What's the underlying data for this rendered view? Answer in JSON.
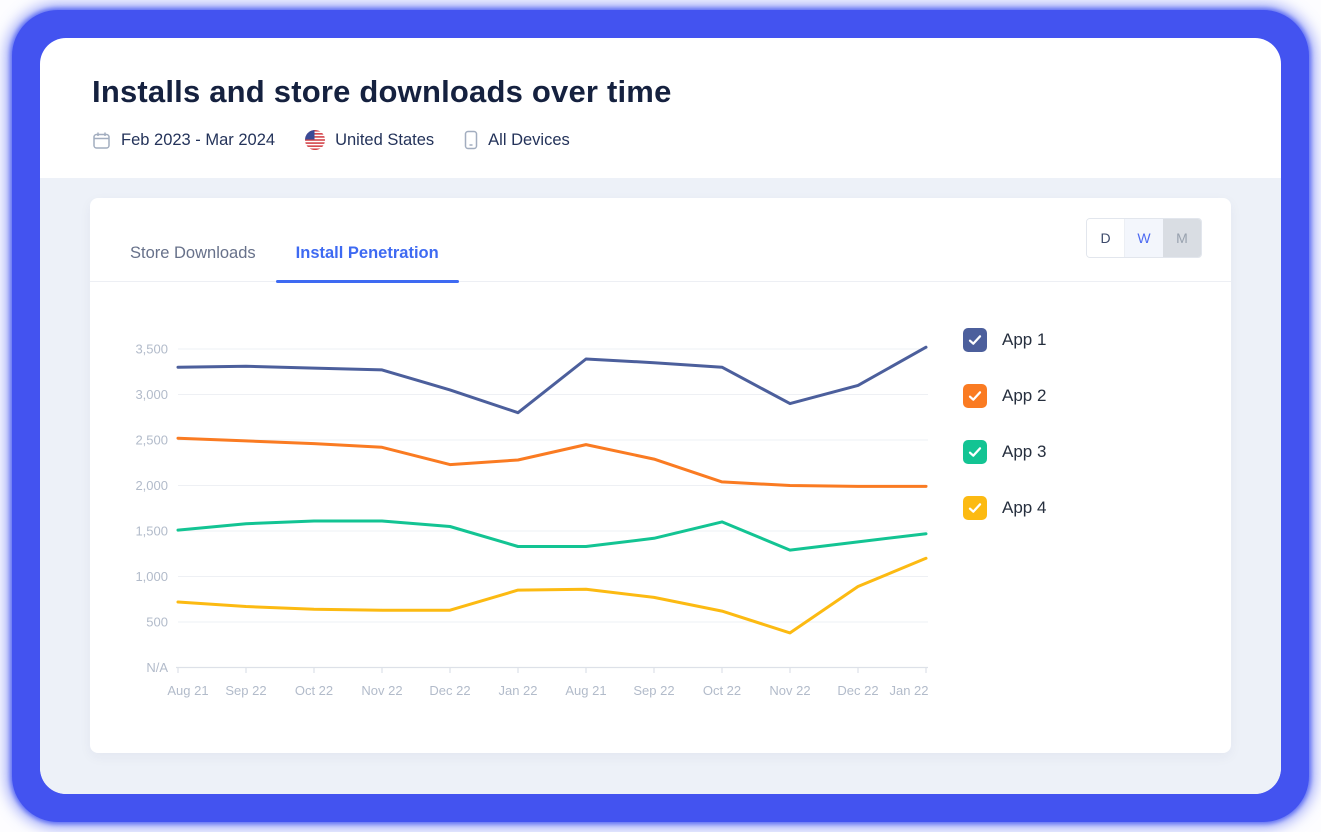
{
  "page": {
    "title": "Installs and store downloads over time",
    "filters": {
      "date_range": "Feb 2023 - Mar 2024",
      "country": "United States",
      "devices": "All Devices"
    }
  },
  "card": {
    "tabs": [
      {
        "label": "Store Downloads",
        "active": false
      },
      {
        "label": "Install Penetration",
        "active": true
      }
    ],
    "granularity_toggle": {
      "options": [
        "D",
        "W",
        "M"
      ],
      "selected": "W"
    },
    "legend": [
      {
        "label": "App 1",
        "color": "#4c5f9c",
        "checked": true
      },
      {
        "label": "App 2",
        "color": "#fa7b22",
        "checked": true
      },
      {
        "label": "App 3",
        "color": "#13c493",
        "checked": true
      },
      {
        "label": "App 4",
        "color": "#fcba12",
        "checked": true
      }
    ]
  },
  "chart_data": {
    "type": "line",
    "categories": [
      "Aug 21",
      "Sep 22",
      "Oct 22",
      "Nov 22",
      "Dec 22",
      "Jan 22",
      "Aug 21",
      "Sep 22",
      "Oct 22",
      "Nov 22",
      "Dec 22",
      "Jan 22"
    ],
    "series": [
      {
        "name": "App 1",
        "color": "#4c5f9c",
        "values": [
          3300,
          3310,
          3290,
          3270,
          3050,
          2800,
          3390,
          3350,
          3300,
          2900,
          3100,
          3520
        ]
      },
      {
        "name": "App 2",
        "color": "#fa7b22",
        "values": [
          2520,
          2490,
          2460,
          2420,
          2230,
          2280,
          2450,
          2290,
          2040,
          2000,
          1990,
          1990
        ]
      },
      {
        "name": "App 3",
        "color": "#13c493",
        "values": [
          1510,
          1580,
          1610,
          1610,
          1550,
          1330,
          1330,
          1420,
          1600,
          1290,
          1380,
          1470
        ]
      },
      {
        "name": "App 4",
        "color": "#fcba12",
        "values": [
          720,
          670,
          640,
          630,
          630,
          850,
          860,
          770,
          620,
          380,
          890,
          1200
        ]
      }
    ],
    "yticks": [
      {
        "v": 0,
        "label": "N/A"
      },
      {
        "v": 500,
        "label": "500"
      },
      {
        "v": 1000,
        "label": "1,000"
      },
      {
        "v": 1500,
        "label": "1,500"
      },
      {
        "v": 2000,
        "label": "2,000"
      },
      {
        "v": 2500,
        "label": "2,500"
      },
      {
        "v": 3000,
        "label": "3,000"
      },
      {
        "v": 3500,
        "label": "3,500"
      }
    ],
    "ylim": [
      0,
      3750
    ],
    "grid": true,
    "legend_position": "right"
  }
}
